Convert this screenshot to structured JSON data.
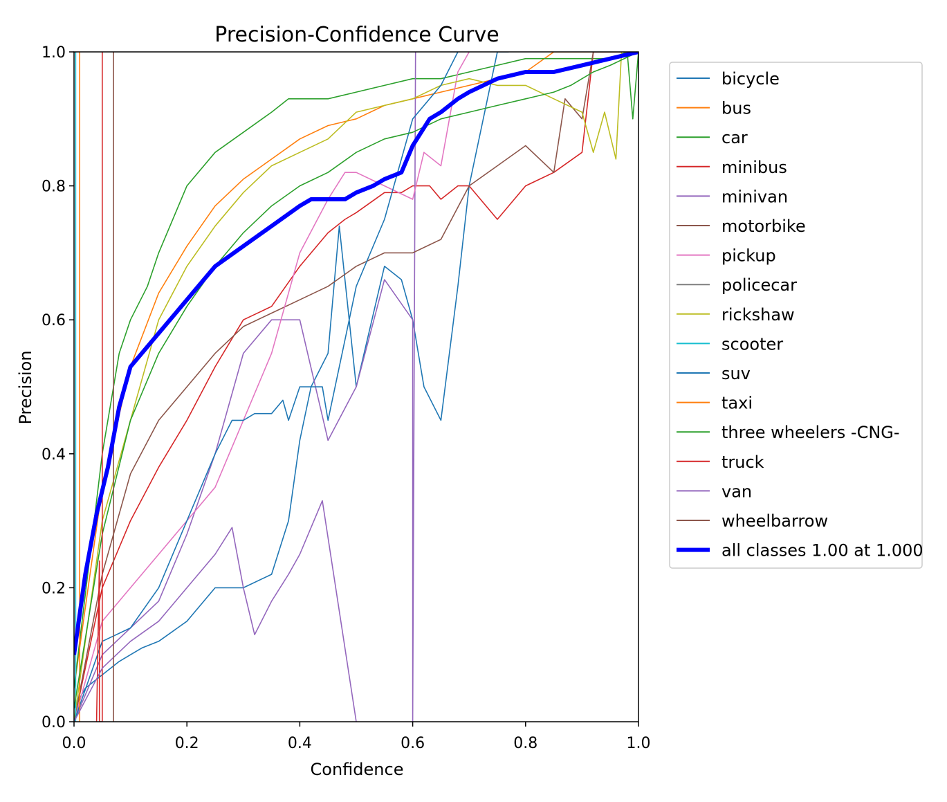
{
  "chart_data": {
    "type": "line",
    "title": "Precision-Confidence Curve",
    "xlabel": "Confidence",
    "ylabel": "Precision",
    "xlim": [
      0,
      1
    ],
    "ylim": [
      0,
      1
    ],
    "xticks": [
      "0.0",
      "0.2",
      "0.4",
      "0.6",
      "0.8",
      "1.0"
    ],
    "yticks": [
      "0.0",
      "0.2",
      "0.4",
      "0.6",
      "0.8",
      "1.0"
    ],
    "grid": false,
    "legend_position": "outside-right",
    "series": [
      {
        "name": "bicycle",
        "color": "#1f77b4",
        "x": [
          0.0,
          0.02,
          0.05,
          0.08,
          0.1,
          0.12,
          0.15,
          0.2,
          0.25,
          0.3,
          0.35,
          0.38,
          0.4,
          0.42,
          0.45,
          0.47,
          0.5,
          0.55,
          0.58,
          0.6,
          0.62,
          0.65,
          0.68,
          0.7,
          0.75,
          0.77
        ],
        "y": [
          0.02,
          0.05,
          0.07,
          0.09,
          0.1,
          0.11,
          0.12,
          0.15,
          0.2,
          0.2,
          0.22,
          0.3,
          0.42,
          0.5,
          0.55,
          0.74,
          0.5,
          0.68,
          0.66,
          0.6,
          0.5,
          0.45,
          0.65,
          0.8,
          1.0,
          1.0
        ]
      },
      {
        "name": "bus",
        "color": "#ff7f0e",
        "x": [
          0.0,
          0.05,
          0.1,
          0.15,
          0.2,
          0.25,
          0.3,
          0.35,
          0.4,
          0.45,
          0.5,
          0.55,
          0.6,
          0.65,
          0.7,
          0.75,
          0.8,
          0.85,
          0.9,
          0.95,
          1.0
        ],
        "y": [
          0.05,
          0.35,
          0.53,
          0.64,
          0.71,
          0.77,
          0.81,
          0.84,
          0.87,
          0.89,
          0.9,
          0.92,
          0.93,
          0.94,
          0.95,
          0.96,
          0.97,
          1.0,
          1.0,
          1.0,
          1.0
        ]
      },
      {
        "name": "car",
        "color": "#2ca02c",
        "x": [
          0.0,
          0.05,
          0.08,
          0.1,
          0.13,
          0.15,
          0.18,
          0.2,
          0.25,
          0.3,
          0.35,
          0.38,
          0.4,
          0.45,
          0.5,
          0.55,
          0.6,
          0.65,
          0.7,
          0.75,
          0.8,
          0.85,
          0.9,
          0.95,
          0.98,
          0.99,
          1.0
        ],
        "y": [
          0.05,
          0.4,
          0.55,
          0.6,
          0.65,
          0.7,
          0.76,
          0.8,
          0.85,
          0.88,
          0.91,
          0.93,
          0.93,
          0.93,
          0.94,
          0.95,
          0.96,
          0.96,
          0.97,
          0.98,
          0.99,
          0.99,
          0.99,
          0.99,
          1.0,
          0.9,
          1.0
        ]
      },
      {
        "name": "minibus",
        "color": "#d62728",
        "x": [
          0.0,
          0.05,
          0.1,
          0.15,
          0.2,
          0.25,
          0.3,
          0.35,
          0.4,
          0.45,
          0.48,
          0.5,
          0.55,
          0.58,
          0.6,
          0.63,
          0.65,
          0.68,
          0.7,
          0.75,
          0.8,
          0.85,
          0.9,
          0.92,
          1.0
        ],
        "y": [
          0.0,
          0.2,
          0.3,
          0.38,
          0.45,
          0.53,
          0.6,
          0.62,
          0.68,
          0.73,
          0.75,
          0.76,
          0.79,
          0.79,
          0.8,
          0.8,
          0.78,
          0.8,
          0.8,
          0.75,
          0.8,
          0.82,
          0.85,
          1.0,
          1.0
        ]
      },
      {
        "name": "minivan",
        "color": "#9467bd",
        "x": [
          0.0,
          0.05,
          0.1,
          0.15,
          0.2,
          0.25,
          0.3,
          0.35,
          0.4,
          0.45,
          0.5,
          0.55,
          0.6,
          0.6,
          0.605
        ],
        "y": [
          0.0,
          0.1,
          0.14,
          0.18,
          0.28,
          0.4,
          0.55,
          0.6,
          0.6,
          0.42,
          0.5,
          0.66,
          0.6,
          0.0,
          1.0
        ]
      },
      {
        "name": "motorbike",
        "color": "#8c564b",
        "x": [
          0.0,
          0.05,
          0.1,
          0.15,
          0.2,
          0.25,
          0.3,
          0.35,
          0.4,
          0.45,
          0.5,
          0.55,
          0.6,
          0.65,
          0.7,
          0.75,
          0.8,
          0.85,
          0.87,
          0.9,
          0.92,
          1.0
        ],
        "y": [
          0.0,
          0.22,
          0.37,
          0.45,
          0.5,
          0.55,
          0.59,
          0.61,
          0.63,
          0.65,
          0.68,
          0.7,
          0.7,
          0.72,
          0.8,
          0.83,
          0.86,
          0.82,
          0.93,
          0.9,
          1.0,
          1.0
        ]
      },
      {
        "name": "pickup",
        "color": "#e377c2",
        "x": [
          0.0,
          0.05,
          0.1,
          0.15,
          0.2,
          0.25,
          0.3,
          0.35,
          0.4,
          0.45,
          0.48,
          0.5,
          0.55,
          0.6,
          0.62,
          0.65,
          0.68,
          0.7
        ],
        "y": [
          0.0,
          0.15,
          0.2,
          0.25,
          0.3,
          0.35,
          0.45,
          0.55,
          0.7,
          0.78,
          0.82,
          0.82,
          0.8,
          0.78,
          0.85,
          0.83,
          0.97,
          1.0
        ]
      },
      {
        "name": "policecar",
        "color": "#7f7f7f",
        "x": [
          0.0,
          0.002
        ],
        "y": [
          1.0,
          1.0
        ]
      },
      {
        "name": "rickshaw",
        "color": "#bcbd22",
        "x": [
          0.0,
          0.05,
          0.1,
          0.15,
          0.2,
          0.25,
          0.3,
          0.35,
          0.4,
          0.45,
          0.5,
          0.55,
          0.6,
          0.65,
          0.7,
          0.75,
          0.8,
          0.85,
          0.9,
          0.92,
          0.94,
          0.96,
          0.97,
          1.0
        ],
        "y": [
          0.0,
          0.3,
          0.45,
          0.6,
          0.68,
          0.74,
          0.79,
          0.83,
          0.85,
          0.87,
          0.91,
          0.92,
          0.93,
          0.95,
          0.96,
          0.95,
          0.95,
          0.93,
          0.91,
          0.85,
          0.91,
          0.84,
          1.0,
          1.0
        ]
      },
      {
        "name": "scooter",
        "color": "#17becf",
        "x": [
          0.003,
          0.003
        ],
        "y": [
          0.0,
          1.0
        ]
      },
      {
        "name": "suv",
        "color": "#1f77b4",
        "x": [
          0.0,
          0.05,
          0.1,
          0.15,
          0.2,
          0.25,
          0.28,
          0.3,
          0.32,
          0.35,
          0.37,
          0.38,
          0.4,
          0.42,
          0.44,
          0.45,
          0.5,
          0.55,
          0.6,
          0.65,
          0.68
        ],
        "y": [
          0.0,
          0.12,
          0.14,
          0.2,
          0.3,
          0.4,
          0.45,
          0.45,
          0.46,
          0.46,
          0.48,
          0.45,
          0.5,
          0.5,
          0.5,
          0.45,
          0.65,
          0.75,
          0.9,
          0.95,
          1.0
        ]
      },
      {
        "name": "taxi",
        "color": "#ff7f0e",
        "x": [
          0.01,
          0.01
        ],
        "y": [
          0.0,
          1.0
        ]
      },
      {
        "name": "three wheelers -CNG-",
        "color": "#2ca02c",
        "x": [
          0.0,
          0.05,
          0.1,
          0.15,
          0.2,
          0.25,
          0.3,
          0.35,
          0.4,
          0.45,
          0.5,
          0.55,
          0.6,
          0.65,
          0.7,
          0.75,
          0.8,
          0.85,
          0.88,
          0.9,
          0.92,
          0.95,
          1.0
        ],
        "y": [
          0.02,
          0.28,
          0.45,
          0.55,
          0.62,
          0.68,
          0.73,
          0.77,
          0.8,
          0.82,
          0.85,
          0.87,
          0.88,
          0.9,
          0.91,
          0.92,
          0.93,
          0.94,
          0.95,
          0.96,
          0.97,
          0.98,
          1.0
        ]
      },
      {
        "name": "truck",
        "color": "#d62728",
        "x": [
          0.04,
          0.045,
          0.045,
          0.05,
          0.05
        ],
        "y": [
          0.0,
          0.24,
          0.0,
          0.0,
          1.0
        ]
      },
      {
        "name": "van",
        "color": "#9467bd",
        "x": [
          0.0,
          0.05,
          0.1,
          0.15,
          0.2,
          0.25,
          0.28,
          0.3,
          0.32,
          0.35,
          0.38,
          0.4,
          0.44,
          0.5,
          0.5
        ],
        "y": [
          0.0,
          0.08,
          0.12,
          0.15,
          0.2,
          0.25,
          0.29,
          0.2,
          0.13,
          0.18,
          0.22,
          0.25,
          0.33,
          0.0,
          0.0
        ]
      },
      {
        "name": "wheelbarrow",
        "color": "#8c564b",
        "x": [
          0.07,
          0.07
        ],
        "y": [
          0.0,
          1.0
        ]
      },
      {
        "name": "all classes 1.00 at 1.000",
        "color": "#0000ff",
        "thick": true,
        "x": [
          0.0,
          0.02,
          0.04,
          0.06,
          0.08,
          0.1,
          0.15,
          0.2,
          0.25,
          0.3,
          0.35,
          0.4,
          0.42,
          0.45,
          0.48,
          0.5,
          0.53,
          0.55,
          0.58,
          0.6,
          0.63,
          0.65,
          0.68,
          0.7,
          0.75,
          0.8,
          0.85,
          0.9,
          0.95,
          1.0
        ],
        "y": [
          0.1,
          0.22,
          0.31,
          0.38,
          0.47,
          0.53,
          0.58,
          0.63,
          0.68,
          0.71,
          0.74,
          0.77,
          0.78,
          0.78,
          0.78,
          0.79,
          0.8,
          0.81,
          0.82,
          0.86,
          0.9,
          0.91,
          0.93,
          0.94,
          0.96,
          0.97,
          0.97,
          0.98,
          0.99,
          1.0
        ]
      }
    ]
  }
}
